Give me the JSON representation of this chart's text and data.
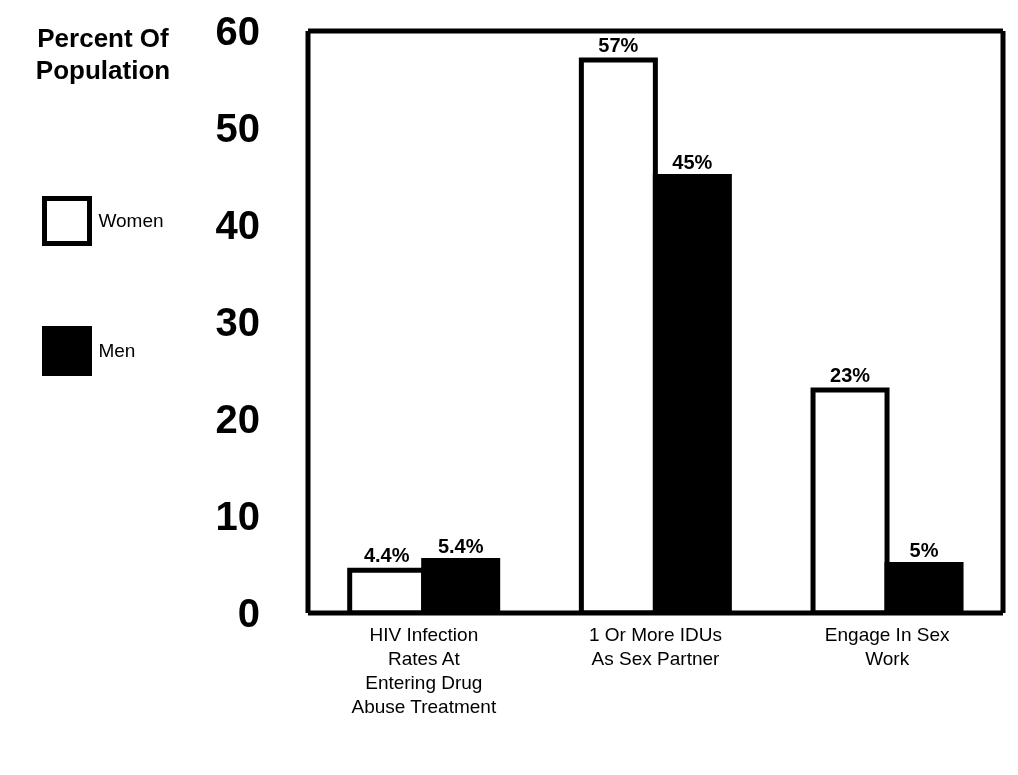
{
  "chart_data": {
    "type": "bar",
    "ylabel": "Percent Of Population",
    "categories": [
      "HIV Infection Rates At Entering Drug Abuse Treatment",
      "1 Or More IDUs As Sex Partner",
      "Engage In Sex Work"
    ],
    "series": [
      {
        "name": "Women",
        "color": "#ffffff",
        "values": [
          4.4,
          57,
          23
        ],
        "value_labels": [
          "4.4%",
          "57%",
          "23%"
        ]
      },
      {
        "name": "Men",
        "color": "#000000",
        "values": [
          5.4,
          45,
          5
        ],
        "value_labels": [
          "5.4%",
          "45%",
          "5%"
        ]
      }
    ],
    "ylim": [
      0,
      60
    ],
    "yticks": [
      0,
      10,
      20,
      30,
      40,
      50,
      60
    ],
    "grid": false,
    "legend": "left"
  }
}
